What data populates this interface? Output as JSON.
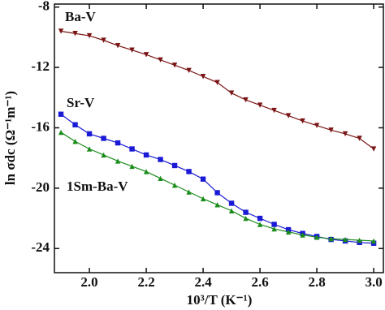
{
  "chart_data": {
    "type": "scatter",
    "x_label": "10³/T (K⁻¹)",
    "y_label": "ln σdc (Ω⁻¹m⁻¹)",
    "x": [
      1.9,
      1.95,
      2.0,
      2.05,
      2.1,
      2.15,
      2.2,
      2.25,
      2.3,
      2.35,
      2.4,
      2.45,
      2.5,
      2.55,
      2.6,
      2.65,
      2.7,
      2.75,
      2.8,
      2.85,
      2.9,
      2.95,
      3.0
    ],
    "series": [
      {
        "name": "Ba-V",
        "color": "#7b1414",
        "marker": "triangle-down",
        "values": [
          -9.6,
          -9.75,
          -9.9,
          -10.2,
          -10.55,
          -10.85,
          -11.15,
          -11.5,
          -11.85,
          -12.2,
          -12.6,
          -13.0,
          -13.7,
          -14.15,
          -14.5,
          -14.85,
          -15.2,
          -15.55,
          -15.85,
          -16.15,
          -16.4,
          -16.7,
          -17.4
        ]
      },
      {
        "name": "Sr-V",
        "color": "#1a1ad6",
        "marker": "square",
        "values": [
          -15.1,
          -15.8,
          -16.4,
          -16.7,
          -17.0,
          -17.4,
          -17.8,
          -18.1,
          -18.5,
          -18.9,
          -19.4,
          -20.3,
          -21.0,
          -21.6,
          -22.0,
          -22.4,
          -22.75,
          -23.0,
          -23.2,
          -23.4,
          -23.5,
          -23.6,
          -23.65
        ]
      },
      {
        "name": "1Sm-Ba-V",
        "color": "#1a8c1a",
        "marker": "triangle-up",
        "values": [
          -16.3,
          -16.9,
          -17.4,
          -17.8,
          -18.2,
          -18.55,
          -18.9,
          -19.35,
          -19.8,
          -20.25,
          -20.7,
          -21.1,
          -21.5,
          -22.0,
          -22.4,
          -22.7,
          -22.9,
          -23.1,
          -23.25,
          -23.35,
          -23.4,
          -23.45,
          -23.5
        ]
      }
    ],
    "xlim": [
      1.877,
      3.034
    ],
    "ylim": [
      -25.6,
      -7.8
    ],
    "xticks": [
      {
        "value": 2,
        "label": "2.0"
      },
      2.2,
      2.4,
      2.6,
      2.8,
      {
        "value": 3,
        "label": "3.0"
      }
    ],
    "yticks": [
      -8,
      -12,
      -16,
      -20,
      -24
    ],
    "grid": false
  }
}
